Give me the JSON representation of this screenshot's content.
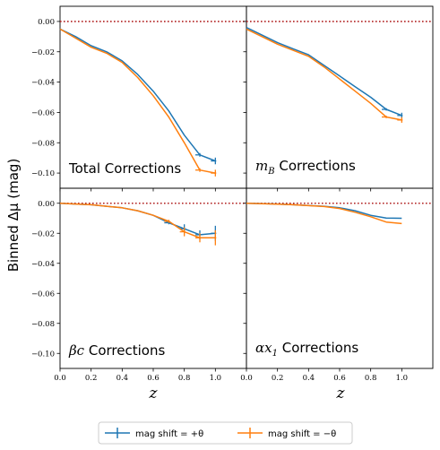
{
  "ylabel": "Binned Δμ (mag)",
  "xlabel": "z",
  "colors": {
    "plus": "#1f77b4",
    "minus": "#ff7f0e",
    "zero_line": "#b22222"
  },
  "legend": {
    "items": [
      {
        "label": "mag shift = +θ",
        "color": "#1f77b4"
      },
      {
        "label": "mag shift = −θ",
        "color": "#ff7f0e"
      }
    ]
  },
  "chart_data": [
    {
      "type": "line",
      "title": "Total Corrections",
      "x": [
        0.0,
        0.1,
        0.2,
        0.3,
        0.4,
        0.5,
        0.6,
        0.7,
        0.8,
        0.9,
        1.0
      ],
      "ylim": [
        -0.11,
        0.01
      ],
      "xlim": [
        0.0,
        1.2
      ],
      "yticks": [
        "0.00",
        "−0.02",
        "−0.04",
        "−0.06",
        "−0.08",
        "−0.10"
      ],
      "xticks": [],
      "series": [
        {
          "name": "mag shift = +θ",
          "values": [
            -0.005,
            -0.01,
            -0.016,
            -0.02,
            -0.026,
            -0.035,
            -0.046,
            -0.059,
            -0.075,
            -0.088,
            -0.092
          ],
          "err": [
            0,
            0,
            0,
            0,
            0,
            0,
            0,
            0,
            0,
            0.0012,
            0.0022
          ]
        },
        {
          "name": "mag shift = −θ",
          "values": [
            -0.005,
            -0.011,
            -0.017,
            -0.021,
            -0.027,
            -0.037,
            -0.049,
            -0.063,
            -0.08,
            -0.098,
            -0.1
          ],
          "err": [
            0,
            0,
            0,
            0,
            0,
            0,
            0,
            0,
            0,
            0.0012,
            0.0022
          ]
        }
      ]
    },
    {
      "type": "line",
      "title": "m_B Corrections",
      "x": [
        0.0,
        0.1,
        0.2,
        0.3,
        0.4,
        0.5,
        0.6,
        0.7,
        0.8,
        0.9,
        1.0
      ],
      "ylim": [
        -0.11,
        0.01
      ],
      "xlim": [
        0.0,
        1.2
      ],
      "yticks": [],
      "xticks": [],
      "series": [
        {
          "name": "mag shift = +θ",
          "values": [
            -0.004,
            -0.009,
            -0.014,
            -0.018,
            -0.022,
            -0.029,
            -0.036,
            -0.043,
            -0.05,
            -0.058,
            -0.062
          ],
          "err": [
            0,
            0,
            0,
            0,
            0,
            0,
            0,
            0,
            0,
            0.0008,
            0.0018
          ]
        },
        {
          "name": "mag shift = −θ",
          "values": [
            -0.005,
            -0.01,
            -0.015,
            -0.019,
            -0.023,
            -0.03,
            -0.038,
            -0.046,
            -0.054,
            -0.063,
            -0.065
          ],
          "err": [
            0,
            0,
            0,
            0,
            0,
            0,
            0,
            0,
            0,
            0.0008,
            0.0018
          ]
        }
      ]
    },
    {
      "type": "line",
      "title": "βc Corrections",
      "x": [
        0.0,
        0.1,
        0.2,
        0.3,
        0.4,
        0.5,
        0.6,
        0.7,
        0.8,
        0.9,
        1.0
      ],
      "ylim": [
        -0.11,
        0.01
      ],
      "xlim": [
        0.0,
        1.2
      ],
      "yticks": [
        "0.00",
        "−0.02",
        "−0.04",
        "−0.06",
        "−0.08",
        "−0.10"
      ],
      "xticks": [
        "0.0",
        "0.2",
        "0.4",
        "0.6",
        "0.8",
        "1.0"
      ],
      "series": [
        {
          "name": "mag shift = +θ",
          "values": [
            0.0,
            -0.0005,
            -0.001,
            -0.002,
            -0.003,
            -0.005,
            -0.008,
            -0.013,
            -0.017,
            -0.021,
            -0.02
          ],
          "err": [
            0,
            0,
            0,
            0,
            0,
            0,
            0,
            0.001,
            0.003,
            0.003,
            0.005
          ]
        },
        {
          "name": "mag shift = −θ",
          "values": [
            0.0,
            -0.0005,
            -0.001,
            -0.002,
            -0.003,
            -0.005,
            -0.008,
            -0.012,
            -0.019,
            -0.023,
            -0.023
          ],
          "err": [
            0,
            0,
            0,
            0,
            0,
            0,
            0,
            0.001,
            0.003,
            0.003,
            0.005
          ]
        }
      ]
    },
    {
      "type": "line",
      "title": "αx_1 Corrections",
      "x": [
        0.0,
        0.1,
        0.2,
        0.3,
        0.4,
        0.5,
        0.6,
        0.7,
        0.8,
        0.9,
        1.0
      ],
      "ylim": [
        -0.11,
        0.01
      ],
      "xlim": [
        0.0,
        1.2
      ],
      "yticks": [],
      "xticks": [
        "0.0",
        "0.2",
        "0.4",
        "0.6",
        "0.8",
        "1.0"
      ],
      "series": [
        {
          "name": "mag shift = +θ",
          "values": [
            0.0,
            -0.0002,
            -0.0005,
            -0.001,
            -0.0015,
            -0.002,
            -0.003,
            -0.005,
            -0.008,
            -0.0098,
            -0.01
          ],
          "err": [
            0,
            0,
            0,
            0,
            0,
            0,
            0,
            0,
            0,
            0,
            0
          ]
        },
        {
          "name": "mag shift = −θ",
          "values": [
            0.0,
            -0.0003,
            -0.0006,
            -0.001,
            -0.0016,
            -0.0022,
            -0.0035,
            -0.006,
            -0.009,
            -0.0125,
            -0.0135
          ],
          "err": [
            0,
            0,
            0,
            0,
            0,
            0,
            0,
            0,
            0,
            0,
            0
          ]
        }
      ]
    }
  ]
}
